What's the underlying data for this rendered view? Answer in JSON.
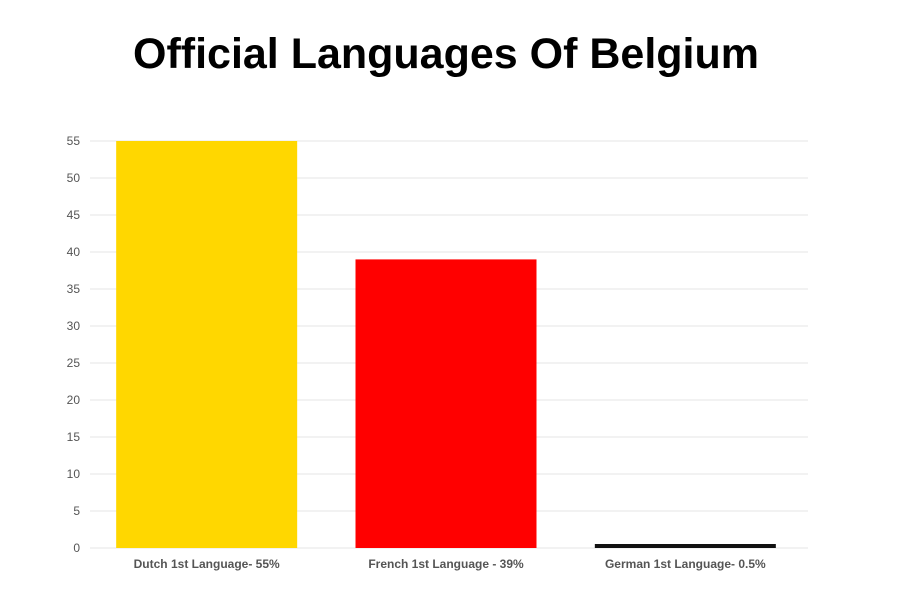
{
  "chart_data": {
    "type": "bar",
    "title": "Official Languages Of Belgium",
    "xlabel": "",
    "ylabel": "",
    "ylim": [
      0,
      55
    ],
    "yticks": [
      0,
      5,
      10,
      15,
      20,
      25,
      30,
      35,
      40,
      45,
      50,
      55
    ],
    "grid": true,
    "legend": "none",
    "categories": [
      "Dutch 1st Language- 55%",
      "French 1st Language - 39%",
      "German 1st Language- 0.5%"
    ],
    "values": [
      55,
      39,
      0.5
    ],
    "colors": [
      "#FFD700",
      "#FF0000",
      "#111111"
    ]
  }
}
